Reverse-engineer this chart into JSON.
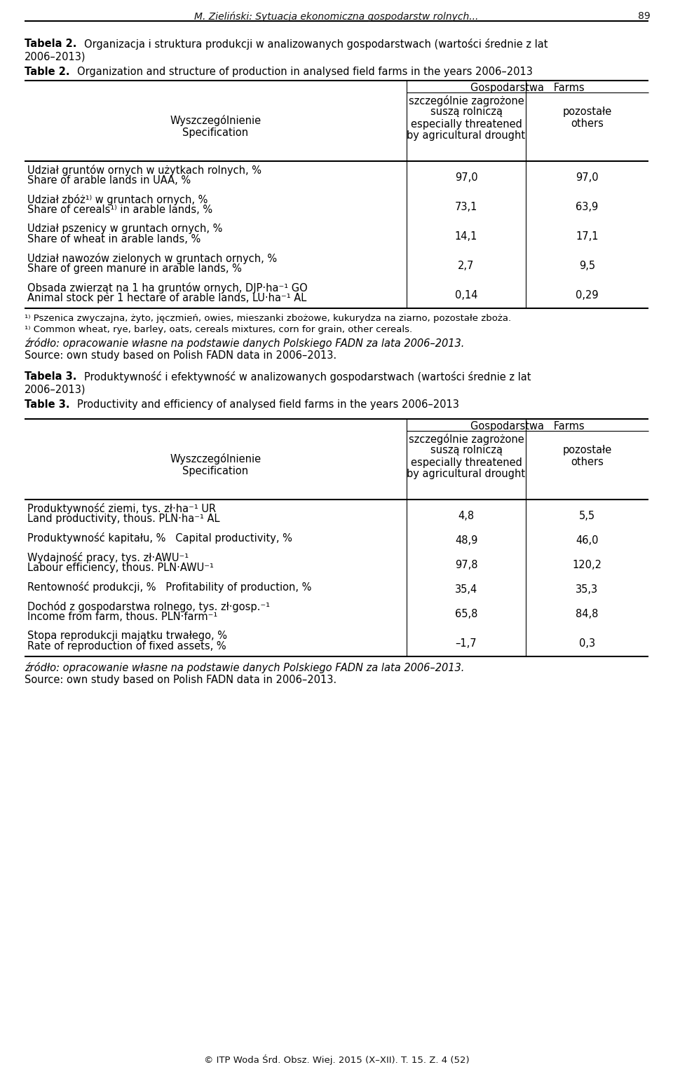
{
  "header_italic": "M. Zieliński: Sytuacja ekonomiczna gospodarstw rolnych...",
  "header_page": "89",
  "bg_color": "#ffffff",
  "text_color": "#000000",
  "table2_col_header1_pl": "szczególnie zagrożone",
  "table2_col_header1_pl2": "suszą rolniczą",
  "table2_col_header1_en": "especially threatened",
  "table2_col_header1_en2": "by agricultural drought",
  "table2_col_header2": "pozostałe",
  "table2_col_header2_en": "others",
  "table2_spec_pl": "Wyszczególnienie",
  "table2_spec_en": "Specification",
  "gospo_header": "Gospodarstwa   Farms",
  "table2_rows": [
    {
      "label_pl": "Udział gruntów ornych w użytkach rolnych, %",
      "label_en": "Share of arable lands in UAA, %",
      "v1": "97,0",
      "v2": "97,0"
    },
    {
      "label_pl": "Udział zbóż¹⁾ w gruntach ornych, %",
      "label_en": "Share of cereals¹⁾ in arable lands, %",
      "v1": "73,1",
      "v2": "63,9"
    },
    {
      "label_pl": "Udział pszenicy w gruntach ornych, %",
      "label_en": "Share of wheat in arable lands, %",
      "v1": "14,1",
      "v2": "17,1"
    },
    {
      "label_pl": "Udział nawozów zielonych w gruntach ornych, %",
      "label_en": "Share of green manure in arable lands, %",
      "v1": "2,7",
      "v2": "9,5"
    },
    {
      "label_pl": "Obsada zwierząt na 1 ha gruntów ornych, DJP·ha⁻¹ GO",
      "label_en": "Animal stock per 1 hectare of arable lands, LU·ha⁻¹ AL",
      "v1": "0,14",
      "v2": "0,29"
    }
  ],
  "table2_footnote1_pl": "¹⁾ Pszenica zwyczajna, żyto, jęczmień, owies, mieszanki zbożowe, kukurydza na ziarno, pozostałe zboża.",
  "table2_footnote1_en": "¹⁾ Common wheat, rye, barley, oats, cereals mixtures, corn for grain, other cereals.",
  "source_pl": "źródło: opracowanie własne na podstawie danych Polskiego FADN za lata 2006–2013.",
  "source_en": "Source: own study based on Polish FADN data in 2006–2013.",
  "table3_rows": [
    {
      "label_pl": "Produktywność ziemi, tys. zł·ha⁻¹ UR",
      "label_en": "Land productivity, thous. PLN·ha⁻¹ AL",
      "v1": "4,8",
      "v2": "5,5",
      "two_lines": true
    },
    {
      "label_pl": "Produktywność kapitału, %   Capital productivity, %",
      "label_en": "",
      "v1": "48,9",
      "v2": "46,0",
      "two_lines": false
    },
    {
      "label_pl": "Wydajność pracy, tys. zł·AWU⁻¹",
      "label_en": "Labour efficiency, thous. PLN·AWU⁻¹",
      "v1": "97,8",
      "v2": "120,2",
      "two_lines": true
    },
    {
      "label_pl": "Rentowność produkcji, %   Profitability of production, %",
      "label_en": "",
      "v1": "35,4",
      "v2": "35,3",
      "two_lines": false
    },
    {
      "label_pl": "Dochód z gospodarstwa rolnego, tys. zł·gosp.⁻¹",
      "label_en": "Income from farm, thous. PLN·farm⁻¹",
      "v1": "65,8",
      "v2": "84,8",
      "two_lines": true
    },
    {
      "label_pl": "Stopa reprodukcji majątku trwałego, %",
      "label_en": "Rate of reproduction of fixed assets, %",
      "v1": "–1,7",
      "v2": "0,3",
      "two_lines": true
    }
  ],
  "footer": "© ITP Woda Śrd. Obsz. Wiej. 2015 (X–XII). T. 15. Z. 4 (52)"
}
